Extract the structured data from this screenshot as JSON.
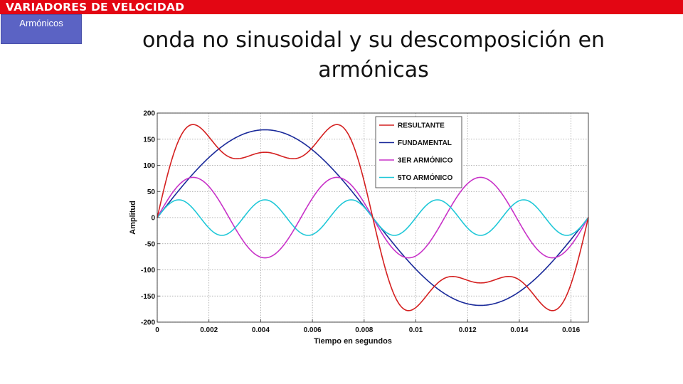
{
  "header": {
    "banner_title": "VARIADORES  DE VELOCIDAD",
    "section_tab": "Armónicos",
    "colors": {
      "banner": "#e30613",
      "tab": "#5b63c4"
    }
  },
  "slide": {
    "title": "onda no sinusoidal y su descomposición en armónicas"
  },
  "chart_data": {
    "type": "line",
    "xlabel": "Tiempo en segundos",
    "ylabel": "Amplitud",
    "xlim": [
      0,
      0.01667
    ],
    "ylim": [
      -200,
      200
    ],
    "xticks": [
      0,
      0.002,
      0.004,
      0.006,
      0.008,
      0.01,
      0.012,
      0.014,
      0.016
    ],
    "xtick_labels": [
      "0",
      "0.002",
      "0.004",
      "0.006",
      "0.008",
      "0.01",
      "0.012",
      "0.014",
      "0.016"
    ],
    "yticks": [
      -200,
      -150,
      -100,
      -50,
      0,
      50,
      100,
      150,
      200
    ],
    "ytick_labels": [
      "-200",
      "-150",
      "-100",
      "-50",
      "0",
      "50",
      "100",
      "150",
      "200"
    ],
    "grid": true,
    "legend_position": "top-right",
    "fundamental_frequency_hz": 60,
    "series": [
      {
        "name": "RESULTANTE",
        "color": "#d42020",
        "formula": "sum of harmonics",
        "peak": 180
      },
      {
        "name": "FUNDAMENTAL",
        "color": "#1a2a9a",
        "harmonic": 1,
        "amplitude": 168
      },
      {
        "name": "3ER ARMÓNICO",
        "color": "#c832c8",
        "harmonic": 3,
        "amplitude": 77
      },
      {
        "name": "5TO ARMÓNICO",
        "color": "#20c8d8",
        "harmonic": 5,
        "amplitude": 34
      }
    ]
  }
}
